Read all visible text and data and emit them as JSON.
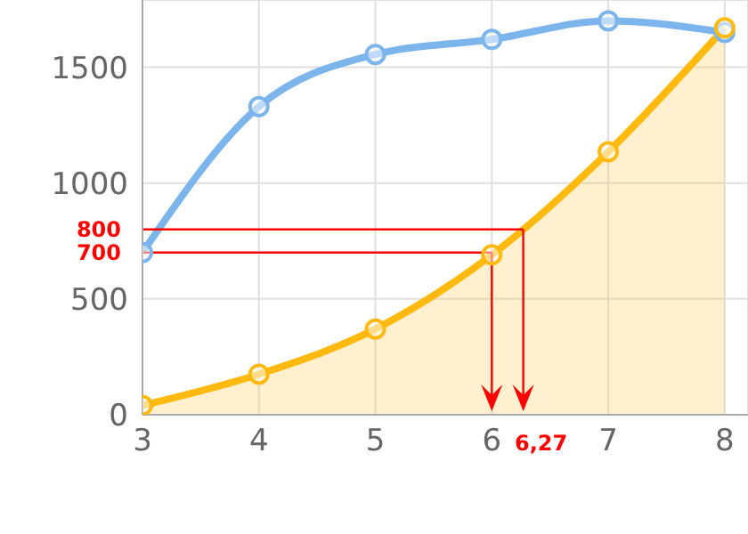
{
  "chart_data": {
    "type": "line",
    "x": [
      3,
      4,
      5,
      6,
      7,
      8
    ],
    "series": [
      {
        "type": "line",
        "color": "#7cb5ec",
        "values": [
          700,
          1330,
          1555,
          1620,
          1700,
          1650
        ]
      },
      {
        "type": "area",
        "color": "#ffb90f",
        "values": [
          40,
          175,
          370,
          690,
          1135,
          1670
        ]
      }
    ],
    "xlim": [
      3,
      8.2
    ],
    "xticks": [
      3,
      4,
      5,
      6,
      7,
      8
    ],
    "ylim": [
      0,
      1790
    ],
    "yticks": [
      0,
      500,
      1000,
      1500
    ],
    "grid": true,
    "marker": "circle",
    "legend": false,
    "ref_lines": [
      {
        "axis": "y",
        "value": 800,
        "label": "800",
        "color": "#ff0000"
      },
      {
        "axis": "x",
        "value": 6.27,
        "label": "6,27",
        "color": "#ff0000"
      },
      {
        "axis": "y",
        "value": 700,
        "label": "700",
        "color": "#ff0000"
      },
      {
        "axis": "x",
        "value": 6,
        "label": null,
        "color": "#ff0000"
      }
    ]
  }
}
